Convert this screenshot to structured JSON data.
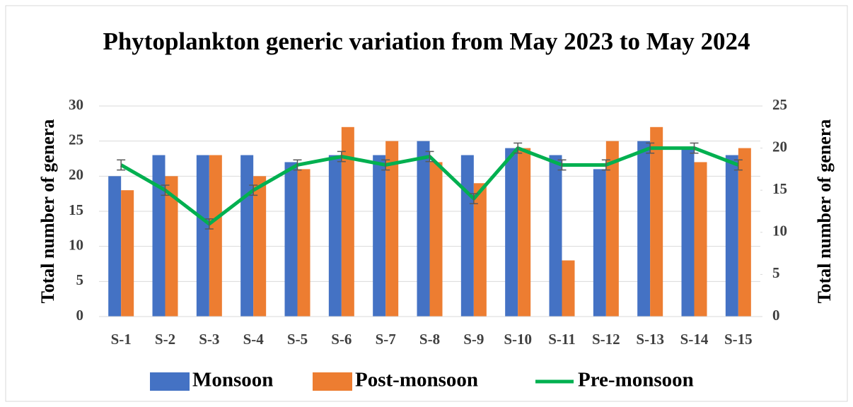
{
  "chart_data": {
    "type": "bar",
    "title": "Phytoplankton generic variation from May 2023 to May 2024",
    "y_label": "Total number of genera",
    "y2_label": "Total number of genera",
    "categories": [
      "S-1",
      "S-2",
      "S-3",
      "S-4",
      "S-5",
      "S-6",
      "S-7",
      "S-8",
      "S-9",
      "S-10",
      "S-11",
      "S-12",
      "S-13",
      "S-14",
      "S-15"
    ],
    "series": [
      {
        "name": "Monsoon",
        "color": "#4472c4",
        "type": "bar",
        "values": [
          20,
          23,
          23,
          23,
          22,
          23,
          23,
          25,
          23,
          24,
          23,
          21,
          25,
          24,
          23
        ]
      },
      {
        "name": "Post-monsoon",
        "color": "#ed7d31",
        "type": "bar",
        "values": [
          18,
          20,
          23,
          20,
          21,
          27,
          25,
          22,
          19,
          24,
          8,
          25,
          27,
          22,
          24
        ]
      },
      {
        "name": "Pre-monsoon",
        "color": "#00b050",
        "type": "line",
        "axis": "y2",
        "values": [
          18,
          15,
          11,
          15,
          18,
          19,
          18,
          19,
          14,
          20,
          18,
          18,
          20,
          20,
          18
        ],
        "errors": [
          0.6,
          0.6,
          0.6,
          0.6,
          0.6,
          0.6,
          0.6,
          0.6,
          0.6,
          0.6,
          0.6,
          0.6,
          0.6,
          0.6,
          0.6
        ]
      }
    ],
    "ylim": [
      0,
      30
    ],
    "yticks": [
      0,
      5,
      10,
      15,
      20,
      25,
      30
    ],
    "y2lim": [
      0,
      25
    ],
    "y2ticks": [
      0,
      5,
      10,
      15,
      20,
      25
    ],
    "grid": true,
    "legend": "bottom"
  }
}
